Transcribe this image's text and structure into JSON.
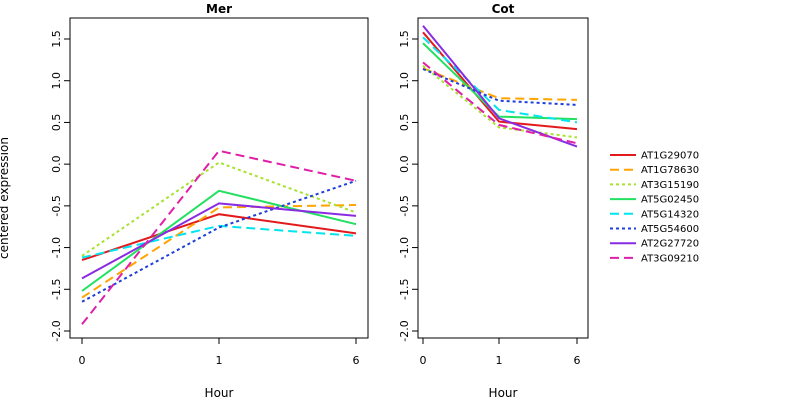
{
  "chart_data": {
    "type": "line",
    "ylabel": "centered expression",
    "xlabel": "Hour",
    "x_categories": [
      "0",
      "1",
      "6"
    ],
    "ylim": [
      -2.0,
      1.75
    ],
    "yticks": [
      "-2.0",
      "-1.5",
      "-1.0",
      "-0.5",
      "0.0",
      "0.5",
      "1.0",
      "1.5"
    ],
    "grid": false,
    "legend_position": "right",
    "series_styles": [
      {
        "name": "AT1G29070",
        "color": "#e31a1c",
        "dash": "solid"
      },
      {
        "name": "AT1G78630",
        "color": "#ffa500",
        "dash": "dashed"
      },
      {
        "name": "AT3G15190",
        "color": "#a6e22e",
        "dash": "dotted"
      },
      {
        "name": "AT5G02450",
        "color": "#22e060",
        "dash": "solid"
      },
      {
        "name": "AT5G14320",
        "color": "#00e5ee",
        "dash": "dashed"
      },
      {
        "name": "AT5G54600",
        "color": "#1f3fd8",
        "dash": "dotted"
      },
      {
        "name": "AT2G27720",
        "color": "#8a2be2",
        "dash": "solid"
      },
      {
        "name": "AT3G09210",
        "color": "#e01fa8",
        "dash": "dashed"
      }
    ],
    "panels": [
      {
        "title": "Mer",
        "series": [
          {
            "name": "AT1G29070",
            "values": [
              -1.15,
              -0.6,
              -0.83
            ]
          },
          {
            "name": "AT1G78630",
            "values": [
              -1.6,
              -0.52,
              -0.49
            ]
          },
          {
            "name": "AT3G15190",
            "values": [
              -1.1,
              0.02,
              -0.58
            ]
          },
          {
            "name": "AT5G02450",
            "values": [
              -1.52,
              -0.32,
              -0.72
            ]
          },
          {
            "name": "AT5G14320",
            "values": [
              -1.12,
              -0.74,
              -0.86
            ]
          },
          {
            "name": "AT5G54600",
            "values": [
              -1.65,
              -0.76,
              -0.2
            ]
          },
          {
            "name": "AT2G27720",
            "values": [
              -1.37,
              -0.47,
              -0.62
            ]
          },
          {
            "name": "AT3G09210",
            "values": [
              -1.92,
              0.16,
              -0.2
            ]
          }
        ]
      },
      {
        "title": "Cot",
        "series": [
          {
            "name": "AT1G29070",
            "values": [
              1.58,
              0.51,
              0.42
            ]
          },
          {
            "name": "AT1G78630",
            "values": [
              1.15,
              0.79,
              0.77
            ]
          },
          {
            "name": "AT3G15190",
            "values": [
              1.18,
              0.44,
              0.32
            ]
          },
          {
            "name": "AT5G02450",
            "values": [
              1.45,
              0.57,
              0.54
            ]
          },
          {
            "name": "AT5G14320",
            "values": [
              1.52,
              0.65,
              0.5
            ]
          },
          {
            "name": "AT5G54600",
            "values": [
              1.14,
              0.76,
              0.71
            ]
          },
          {
            "name": "AT2G27720",
            "values": [
              1.66,
              0.55,
              0.21
            ]
          },
          {
            "name": "AT3G09210",
            "values": [
              1.22,
              0.47,
              0.25
            ]
          }
        ]
      }
    ]
  }
}
